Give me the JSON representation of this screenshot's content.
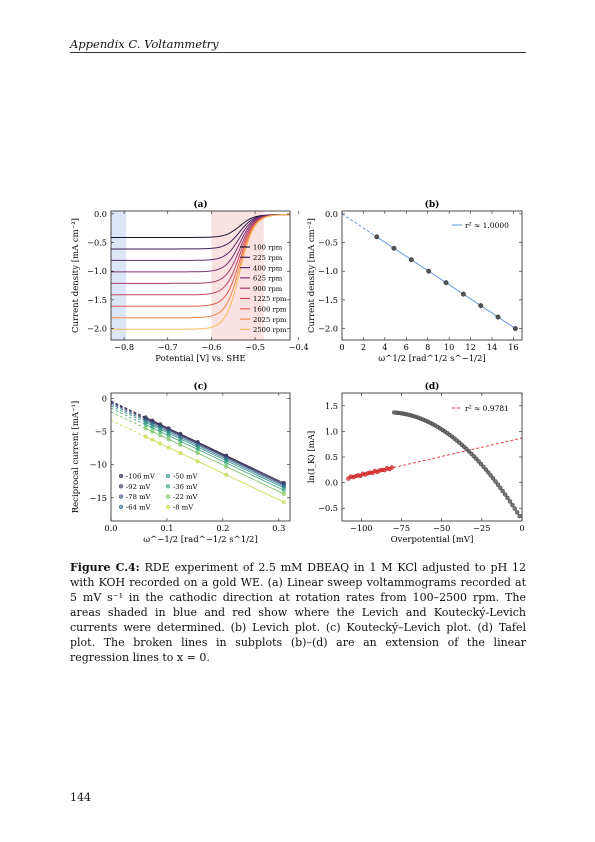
{
  "header": {
    "text": "Appendix C.  Voltammetry"
  },
  "page_number": "144",
  "caption": {
    "label": "Figure C.4:",
    "text": "RDE experiment of 2.5 mM DBEAQ in 1 M KCl adjusted to pH 12 with KOH recorded on a gold WE. (a) Linear sweep voltammograms recorded at 5 mV s⁻¹ in the cathodic direction at rotation rates from 100–2500 rpm. The areas shaded in blue and red show where the Levich and Koutecký-Levich currents were determined. (b) Levich plot. (c) Koutecký–Levich plot. (d) Tafel plot. The broken lines in subplots (b)–(d) are an extension of the linear regression lines to x = 0."
  },
  "chart_data": [
    {
      "panel": "(a)",
      "type": "line",
      "xlabel": "Potential [V] vs. SHE",
      "ylabel": "Current density [mA cm⁻²]",
      "xlim": [
        -0.83,
        -0.42
      ],
      "ylim": [
        -2.2,
        0.05
      ],
      "xticks": [
        -0.8,
        -0.7,
        -0.6,
        -0.5,
        -0.4
      ],
      "xtick_labels": [
        "−0.8",
        "−0.7",
        "−0.6",
        "−0.5",
        "−0.4"
      ],
      "yticks": [
        0.0,
        -0.5,
        -1.0,
        -1.5,
        -2.0
      ],
      "ytick_labels": [
        "0.0",
        "−0.5",
        "−1.0",
        "−1.5",
        "−2.0"
      ],
      "shaded_regions": [
        {
          "x": [
            -0.83,
            -0.795
          ],
          "color": "#dce6f8"
        },
        {
          "x": [
            -0.6,
            -0.48
          ],
          "color": "#fbe2e2"
        }
      ],
      "series": [
        {
          "name": "100 rpm",
          "limiting_current": -0.4,
          "color": "#1a1433"
        },
        {
          "name": "225 rpm",
          "limiting_current": -0.6,
          "color": "#3a1f55"
        },
        {
          "name": "400 rpm",
          "limiting_current": -0.8,
          "color": "#5b2a6e"
        },
        {
          "name": "625 rpm",
          "limiting_current": -1.0,
          "color": "#7d3373"
        },
        {
          "name": "900 rpm",
          "limiting_current": -1.2,
          "color": "#a03d6d"
        },
        {
          "name": "1225 rpm",
          "limiting_current": -1.4,
          "color": "#c54a60"
        },
        {
          "name": "1600 rpm",
          "limiting_current": -1.6,
          "color": "#e06050"
        },
        {
          "name": "2025 rpm",
          "limiting_current": -1.8,
          "color": "#f0884a"
        },
        {
          "name": "2500 rpm",
          "limiting_current": -2.0,
          "color": "#f7b95a"
        }
      ]
    },
    {
      "panel": "(b)",
      "type": "scatter",
      "xlabel": "ω^1/2 [rad^1/2 s^−1/2]",
      "ylabel": "Current density [mA cm⁻²]",
      "xlim": [
        0,
        16.8
      ],
      "ylim": [
        -2.2,
        0.05
      ],
      "xticks": [
        0,
        2,
        4,
        6,
        8,
        10,
        12,
        14,
        16
      ],
      "xtick_labels": [
        "0",
        "2",
        "4",
        "6",
        "8",
        "10",
        "12",
        "14",
        "16"
      ],
      "yticks": [
        0.0,
        -0.5,
        -1.0,
        -1.5,
        -2.0
      ],
      "ytick_labels": [
        "0.0",
        "−0.5",
        "−1.0",
        "−1.5",
        "−2.0"
      ],
      "legend": "r² ≈ 1.0000",
      "x": [
        3.24,
        4.85,
        6.47,
        8.09,
        9.71,
        11.33,
        12.95,
        14.56,
        16.18
      ],
      "y": [
        -0.4,
        -0.6,
        -0.8,
        -1.0,
        -1.2,
        -1.4,
        -1.6,
        -1.8,
        -2.0
      ],
      "fit": {
        "slope": -0.1236,
        "intercept": 0.0
      }
    },
    {
      "panel": "(c)",
      "type": "scatter",
      "xlabel": "ω^−1/2 [rad^−1/2 s^1/2]",
      "ylabel": "Reciprocal current [mA⁻¹]",
      "xlim": [
        0,
        0.32
      ],
      "ylim": [
        -18.5,
        0.8
      ],
      "xticks": [
        0.0,
        0.1,
        0.2,
        0.3
      ],
      "xtick_labels": [
        "0.0",
        "0.1",
        "0.2",
        "0.3"
      ],
      "yticks": [
        0,
        -5,
        -10,
        -15
      ],
      "ytick_labels": [
        "0",
        "−5",
        "−10",
        "−15"
      ],
      "x": [
        0.062,
        0.074,
        0.088,
        0.103,
        0.124,
        0.155,
        0.206,
        0.309
      ],
      "series": [
        {
          "name": "-106 mV",
          "color": "#2a1f3d",
          "intercept": -0.4,
          "slope": -40.0
        },
        {
          "name": "-92 mV",
          "color": "#3a2d5c",
          "intercept": -0.55,
          "slope": -40.0
        },
        {
          "name": "-78 mV",
          "color": "#3a4f7c",
          "intercept": -0.7,
          "slope": -40.0
        },
        {
          "name": "-64 mV",
          "color": "#2f6f8a",
          "intercept": -0.9,
          "slope": -40.0
        },
        {
          "name": "-50 mV",
          "color": "#2f8f8a",
          "intercept": -1.15,
          "slope": -40.0
        },
        {
          "name": "-36 mV",
          "color": "#3aa77a",
          "intercept": -1.5,
          "slope": -40.0
        },
        {
          "name": "-22 mV",
          "color": "#72c25a",
          "intercept": -2.05,
          "slope": -40.0
        },
        {
          "name": "-8 mV",
          "color": "#c8d840",
          "intercept": -3.3,
          "slope": -40.0
        }
      ]
    },
    {
      "panel": "(d)",
      "type": "scatter",
      "xlabel": "Overpotential [mV]",
      "ylabel": "ln(I_K) [mA]",
      "xlim": [
        -112,
        0
      ],
      "ylim": [
        -0.75,
        1.75
      ],
      "xticks": [
        -100,
        -75,
        -50,
        -25,
        0
      ],
      "xtick_labels": [
        "−100",
        "−75",
        "−50",
        "−25",
        "0"
      ],
      "yticks": [
        1.5,
        1.0,
        0.5,
        0.0,
        -0.5
      ],
      "ytick_labels": [
        "1.5",
        "1.0",
        "0.5",
        "0.0",
        "−0.5"
      ],
      "legend": "r² ≈ 0.9781",
      "fit": {
        "slope": 0.0072,
        "intercept": 0.87
      },
      "fit_color": "#e03030"
    }
  ],
  "colors": {
    "fit_blue": "#5b8fd0",
    "marker_gray": "#555555",
    "marker_red": "#e03030"
  }
}
